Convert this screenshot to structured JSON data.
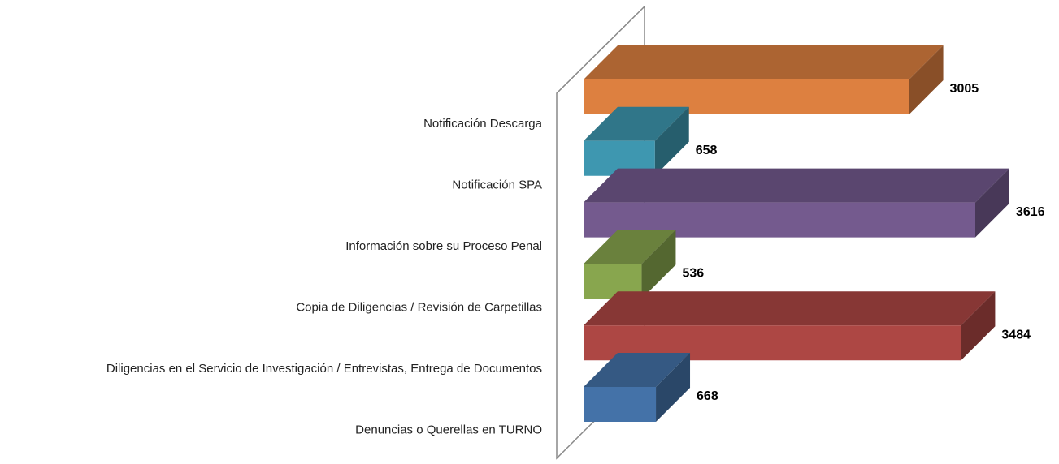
{
  "chart_data": {
    "type": "bar3d_horizontal",
    "categories": [
      "Notificación Descarga",
      "Notificación SPA",
      "Información sobre su Proceso Penal",
      "Copia de Diligencias / Revisión de Carpetillas",
      "Diligencias en el Servicio de Investigación / Entrevistas, Entrega de Documentos",
      "Denuncias o Querellas en TURNO"
    ],
    "values": [
      3005,
      658,
      3616,
      536,
      3484,
      668
    ],
    "colors": [
      "#dd8040",
      "#3e97b0",
      "#745a8e",
      "#88a64e",
      "#ad4744",
      "#4472a8"
    ]
  }
}
